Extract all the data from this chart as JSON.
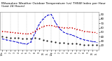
{
  "title": "Milwaukee Weather Outdoor Temperature (vs) THSW Index per Hour (Last 24 Hours)",
  "title_fontsize": 3.2,
  "background_color": "#ffffff",
  "x_hours": [
    0,
    1,
    2,
    3,
    4,
    5,
    6,
    7,
    8,
    9,
    10,
    11,
    12,
    13,
    14,
    15,
    16,
    17,
    18,
    19,
    20,
    21,
    22,
    23
  ],
  "temp_red": [
    52,
    51,
    50,
    49,
    48,
    47,
    46,
    47,
    52,
    58,
    63,
    65,
    65,
    63,
    61,
    60,
    60,
    60,
    57,
    55,
    52,
    51,
    50,
    49
  ],
  "thsw_blue": [
    35,
    33,
    31,
    29,
    27,
    25,
    23,
    28,
    48,
    68,
    80,
    88,
    90,
    72,
    58,
    50,
    46,
    44,
    40,
    36,
    33,
    31,
    29,
    28
  ],
  "dew_black": [
    40,
    39,
    38,
    38,
    37,
    36,
    35,
    36,
    37,
    35,
    33,
    31,
    29,
    28,
    27,
    26,
    25,
    25,
    24,
    23,
    22,
    22,
    22,
    21
  ],
  "ylim": [
    10,
    95
  ],
  "y_ticks": [
    20,
    30,
    40,
    50,
    60,
    70,
    80,
    90
  ],
  "x_tick_labels": [
    "12a",
    "1",
    "2",
    "3",
    "4",
    "5",
    "6",
    "7",
    "8",
    "9",
    "10",
    "11",
    "12p",
    "1",
    "2",
    "3",
    "4",
    "5",
    "6",
    "7",
    "8",
    "9",
    "10",
    "11"
  ],
  "grid_color": "#bbbbbb",
  "red_color": "#cc0000",
  "blue_color": "#0000cc",
  "black_color": "#111111",
  "right_axis_labels": [
    "90",
    "80",
    "70",
    "60",
    "50",
    "40",
    "30",
    "20",
    "10"
  ]
}
